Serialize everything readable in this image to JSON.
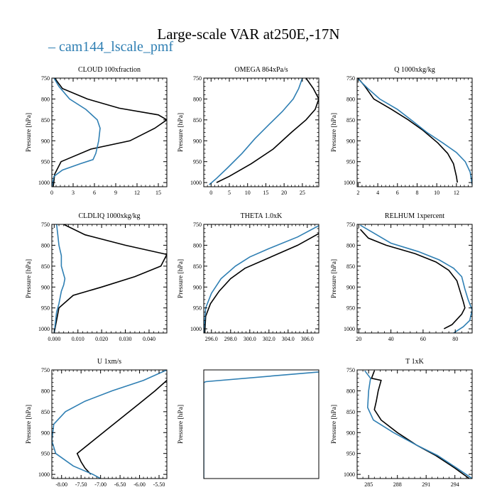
{
  "page": {
    "title": "Large-scale VAR at250E,-17N",
    "legend": {
      "label": "cam144_lscale_pmf",
      "color": "#2f7fb3"
    },
    "series_colors": {
      "black": "#000000",
      "blue": "#2f7fb3"
    }
  },
  "chart_data": [
    {
      "type": "line",
      "title": "CLOUD  100xfraction",
      "ylabel": "Pressure [hPa]",
      "xlim": [
        0,
        16.2
      ],
      "ylim": [
        1010,
        750
      ],
      "xticks": [
        0,
        3,
        6,
        9,
        12,
        15
      ],
      "xtick_labels": [
        "0",
        "3",
        "6",
        "9",
        "12",
        "15"
      ],
      "yticks": [
        750,
        800,
        850,
        900,
        950,
        1000
      ],
      "ytick_labels": [
        "750",
        "800",
        "850",
        "900",
        "950",
        "1000"
      ],
      "series": [
        {
          "color": "black",
          "points": [
            [
              0.4,
              750
            ],
            [
              1.5,
              775
            ],
            [
              5,
              800
            ],
            [
              9.5,
              822
            ],
            [
              15,
              838
            ],
            [
              16.2,
              850
            ],
            [
              14.5,
              870
            ],
            [
              11,
              900
            ],
            [
              5.5,
              920
            ],
            [
              1.3,
              950
            ],
            [
              0.4,
              980
            ],
            [
              0.2,
              1010
            ]
          ]
        },
        {
          "color": "blue",
          "points": [
            [
              0.3,
              750
            ],
            [
              1,
              770
            ],
            [
              2.5,
              800
            ],
            [
              4.8,
              825
            ],
            [
              6.4,
              850
            ],
            [
              6.8,
              870
            ],
            [
              6.6,
              900
            ],
            [
              6.2,
              930
            ],
            [
              5.8,
              945
            ],
            [
              4,
              955
            ],
            [
              1.5,
              970
            ],
            [
              0.3,
              985
            ],
            [
              0,
              1010
            ]
          ]
        }
      ]
    },
    {
      "type": "line",
      "title": "OMEGA  864xPa/s",
      "ylabel": "Pressure [hPa]",
      "xlim": [
        -2,
        29.5
      ],
      "ylim": [
        1010,
        750
      ],
      "xticks": [
        0,
        5,
        10,
        15,
        20,
        25
      ],
      "xtick_labels": [
        "0",
        "5",
        "10",
        "15",
        "20",
        "25"
      ],
      "yticks": [
        750,
        800,
        850,
        900,
        950,
        1000
      ],
      "ytick_labels": [
        "750",
        "800",
        "850",
        "900",
        "950",
        "1000"
      ],
      "series": [
        {
          "color": "black",
          "points": [
            [
              26,
              750
            ],
            [
              28,
              775
            ],
            [
              29.5,
              800
            ],
            [
              28.5,
              825
            ],
            [
              26,
              850
            ],
            [
              22,
              880
            ],
            [
              17,
              920
            ],
            [
              11,
              955
            ],
            [
              5,
              985
            ],
            [
              1.5,
              1000
            ]
          ]
        },
        {
          "color": "blue",
          "points": [
            [
              25,
              750
            ],
            [
              24,
              775
            ],
            [
              22.5,
              800
            ],
            [
              19.5,
              830
            ],
            [
              16,
              860
            ],
            [
              12,
              895
            ],
            [
              8.5,
              930
            ],
            [
              4.5,
              965
            ],
            [
              1.5,
              990
            ],
            [
              -0.5,
              1005
            ]
          ]
        }
      ]
    },
    {
      "type": "line",
      "title": "Q  1000xkg/kg",
      "ylabel": "Pressure [hPa]",
      "xlim": [
        1.9,
        13.6
      ],
      "ylim": [
        1010,
        750
      ],
      "xticks": [
        2,
        4,
        6,
        8,
        10,
        12
      ],
      "xtick_labels": [
        "2",
        "4",
        "6",
        "8",
        "10",
        "12"
      ],
      "yticks": [
        750,
        800,
        850,
        900,
        950,
        1000
      ],
      "ytick_labels": [
        "750",
        "800",
        "850",
        "900",
        "950",
        "1000"
      ],
      "series": [
        {
          "color": "black",
          "points": [
            [
              2,
              750
            ],
            [
              2.7,
              770
            ],
            [
              3.6,
              800
            ],
            [
              5.4,
              825
            ],
            [
              7.1,
              850
            ],
            [
              8.6,
              875
            ],
            [
              10.1,
              905
            ],
            [
              11.1,
              930
            ],
            [
              11.7,
              955
            ],
            [
              12,
              985
            ],
            [
              12.1,
              1000
            ]
          ]
        },
        {
          "color": "blue",
          "points": [
            [
              2,
              752
            ],
            [
              3,
              775
            ],
            [
              4.2,
              800
            ],
            [
              6,
              825
            ],
            [
              7.5,
              852
            ],
            [
              9,
              880
            ],
            [
              10.6,
              905
            ],
            [
              12,
              928
            ],
            [
              12.9,
              950
            ],
            [
              13.4,
              975
            ],
            [
              13.6,
              1005
            ]
          ]
        }
      ]
    },
    {
      "type": "line",
      "title": "CLDLIQ  1000xkg/kg",
      "ylabel": "Pressure [hPa]",
      "xlim": [
        -0.001,
        0.0475
      ],
      "ylim": [
        1010,
        750
      ],
      "xticks": [
        0,
        0.01,
        0.02,
        0.03,
        0.04
      ],
      "xtick_labels": [
        "0.000",
        "0.010",
        "0.020",
        "0.030",
        "0.040"
      ],
      "yticks": [
        750,
        800,
        850,
        900,
        950,
        1000
      ],
      "ytick_labels": [
        "750",
        "800",
        "850",
        "900",
        "950",
        "1000"
      ],
      "series": [
        {
          "color": "black",
          "points": [
            [
              0.004,
              750
            ],
            [
              0.013,
              775
            ],
            [
              0.03,
              800
            ],
            [
              0.0475,
              822
            ],
            [
              0.045,
              850
            ],
            [
              0.034,
              875
            ],
            [
              0.02,
              900
            ],
            [
              0.008,
              920
            ],
            [
              0.002,
              950
            ],
            [
              0,
              1010
            ]
          ]
        },
        {
          "color": "blue",
          "points": [
            [
              0.001,
              750
            ],
            [
              0.0015,
              775
            ],
            [
              0.002,
              800
            ],
            [
              0.003,
              825
            ],
            [
              0.003,
              850
            ],
            [
              0.004,
              870
            ],
            [
              0.0045,
              880
            ],
            [
              0.004,
              895
            ],
            [
              0.003,
              910
            ],
            [
              0.0025,
              925
            ],
            [
              0.002,
              940
            ],
            [
              0.001,
              960
            ],
            [
              0,
              1010
            ]
          ]
        }
      ]
    },
    {
      "type": "line",
      "title": "THETA  1.0xK",
      "ylabel": "Pressure [hPa]",
      "xlim": [
        295.2,
        307.2
      ],
      "ylim": [
        1010,
        750
      ],
      "xticks": [
        296,
        298,
        300,
        302,
        304,
        306
      ],
      "xtick_labels": [
        "296.0",
        "298.0",
        "300.0",
        "302.0",
        "304.0",
        "306.0"
      ],
      "yticks": [
        750,
        800,
        850,
        900,
        950,
        1000
      ],
      "ytick_labels": [
        "750",
        "800",
        "850",
        "900",
        "950",
        "1000"
      ],
      "series": [
        {
          "color": "black",
          "points": [
            [
              307.2,
              772
            ],
            [
              305,
              800
            ],
            [
              302,
              830
            ],
            [
              299.5,
              855
            ],
            [
              298,
              880
            ],
            [
              296.8,
              910
            ],
            [
              295.9,
              940
            ],
            [
              295.4,
              970
            ],
            [
              295.3,
              1010
            ]
          ]
        },
        {
          "color": "blue",
          "points": [
            [
              307.2,
              753
            ],
            [
              305,
              780
            ],
            [
              302,
              808
            ],
            [
              300,
              828
            ],
            [
              298.5,
              850
            ],
            [
              297,
              880
            ],
            [
              296,
              915
            ],
            [
              295.4,
              950
            ],
            [
              295.2,
              1010
            ]
          ]
        }
      ]
    },
    {
      "type": "line",
      "title": "RELHUM  1xpercent",
      "ylabel": "Pressure [hPa]",
      "xlim": [
        19,
        90.5
      ],
      "ylim": [
        1010,
        750
      ],
      "xticks": [
        20,
        40,
        60,
        80
      ],
      "xtick_labels": [
        "20",
        "40",
        "60",
        "80"
      ],
      "yticks": [
        750,
        800,
        850,
        900,
        950,
        1000
      ],
      "ytick_labels": [
        "750",
        "800",
        "850",
        "900",
        "950",
        "1000"
      ],
      "series": [
        {
          "color": "black",
          "points": [
            [
              21,
              762
            ],
            [
              26,
              783
            ],
            [
              37,
              800
            ],
            [
              55,
              820
            ],
            [
              68,
              840
            ],
            [
              76,
              860
            ],
            [
              81,
              885
            ],
            [
              83,
              910
            ],
            [
              85,
              935
            ],
            [
              86,
              950
            ],
            [
              84,
              965
            ],
            [
              78,
              990
            ],
            [
              73,
              1000
            ]
          ]
        },
        {
          "color": "blue",
          "points": [
            [
              21,
              752
            ],
            [
              29,
              770
            ],
            [
              40,
              795
            ],
            [
              57,
              815
            ],
            [
              70,
              835
            ],
            [
              79,
              855
            ],
            [
              84,
              875
            ],
            [
              86,
              905
            ],
            [
              88,
              930
            ],
            [
              90.5,
              955
            ],
            [
              89,
              980
            ],
            [
              85,
              995
            ],
            [
              79,
              1010
            ]
          ]
        }
      ]
    },
    {
      "type": "line",
      "title": "U  1xm/s",
      "ylabel": "Pressure [hPa]",
      "xlim": [
        -8.25,
        -5.3
      ],
      "ylim": [
        1010,
        750
      ],
      "xticks": [
        -8,
        -7.5,
        -7,
        -6.5,
        -6,
        -5.5
      ],
      "xtick_labels": [
        "-8.00",
        "-7.50",
        "-7.00",
        "-6.50",
        "-6.00",
        "-5.50"
      ],
      "yticks": [
        750,
        800,
        850,
        900,
        950,
        1000
      ],
      "ytick_labels": [
        "750",
        "800",
        "850",
        "900",
        "950",
        "1000"
      ],
      "series": [
        {
          "color": "black",
          "points": [
            [
              -5.3,
              775
            ],
            [
              -5.6,
              800
            ],
            [
              -6,
              830
            ],
            [
              -6.4,
              860
            ],
            [
              -6.8,
              890
            ],
            [
              -7.2,
              920
            ],
            [
              -7.6,
              950
            ],
            [
              -7.5,
              970
            ],
            [
              -7.4,
              985
            ],
            [
              -7.25,
              1000
            ]
          ]
        },
        {
          "color": "blue",
          "points": [
            [
              -5.3,
              750
            ],
            [
              -5.9,
              775
            ],
            [
              -6.7,
              800
            ],
            [
              -7.4,
              825
            ],
            [
              -7.9,
              850
            ],
            [
              -8.2,
              880
            ],
            [
              -8.25,
              920
            ],
            [
              -8.15,
              950
            ],
            [
              -7.7,
              980
            ],
            [
              -7.2,
              1000
            ],
            [
              -7.0,
              1010
            ]
          ]
        }
      ]
    },
    {
      "type": "line",
      "title": "",
      "ylabel": "Pressure [hPa]",
      "xlim": [
        0,
        1
      ],
      "ylim": [
        1010,
        750
      ],
      "xticks": [],
      "xtick_labels": [],
      "yticks": [],
      "ytick_labels": [],
      "series": [
        {
          "color": "blue",
          "points": [
            [
              0,
              780
            ],
            [
              0.02,
              778
            ],
            [
              1,
              755
            ]
          ]
        },
        {
          "color": "blue",
          "points": [
            [
              0,
              780
            ],
            [
              0,
              1010
            ]
          ]
        }
      ]
    },
    {
      "type": "line",
      "title": "T  1xK",
      "ylabel": "Pressure [hPa]",
      "xlim": [
        283.8,
        295.8
      ],
      "ylim": [
        1010,
        750
      ],
      "xticks": [
        285,
        288,
        291,
        294
      ],
      "xtick_labels": [
        "285",
        "288",
        "291",
        "294"
      ],
      "yticks": [
        750,
        800,
        850,
        900,
        950,
        1000
      ],
      "ytick_labels": [
        "750",
        "800",
        "850",
        "900",
        "950",
        "1000"
      ],
      "series": [
        {
          "color": "black",
          "points": [
            [
              285.6,
              752
            ],
            [
              285.3,
              770
            ],
            [
              286.3,
              775
            ],
            [
              286,
              800
            ],
            [
              285.8,
              825
            ],
            [
              285.6,
              845
            ],
            [
              286.3,
              870
            ],
            [
              288,
              900
            ],
            [
              290,
              930
            ],
            [
              292,
              955
            ],
            [
              294,
              985
            ],
            [
              295.5,
              1010
            ]
          ]
        },
        {
          "color": "blue",
          "points": [
            [
              284.6,
              752
            ],
            [
              285.2,
              770
            ],
            [
              285,
              800
            ],
            [
              284.9,
              840
            ],
            [
              285.5,
              870
            ],
            [
              287.6,
              900
            ],
            [
              290,
              930
            ],
            [
              292.2,
              955
            ],
            [
              294.2,
              985
            ],
            [
              295.8,
              1010
            ]
          ]
        }
      ]
    }
  ]
}
